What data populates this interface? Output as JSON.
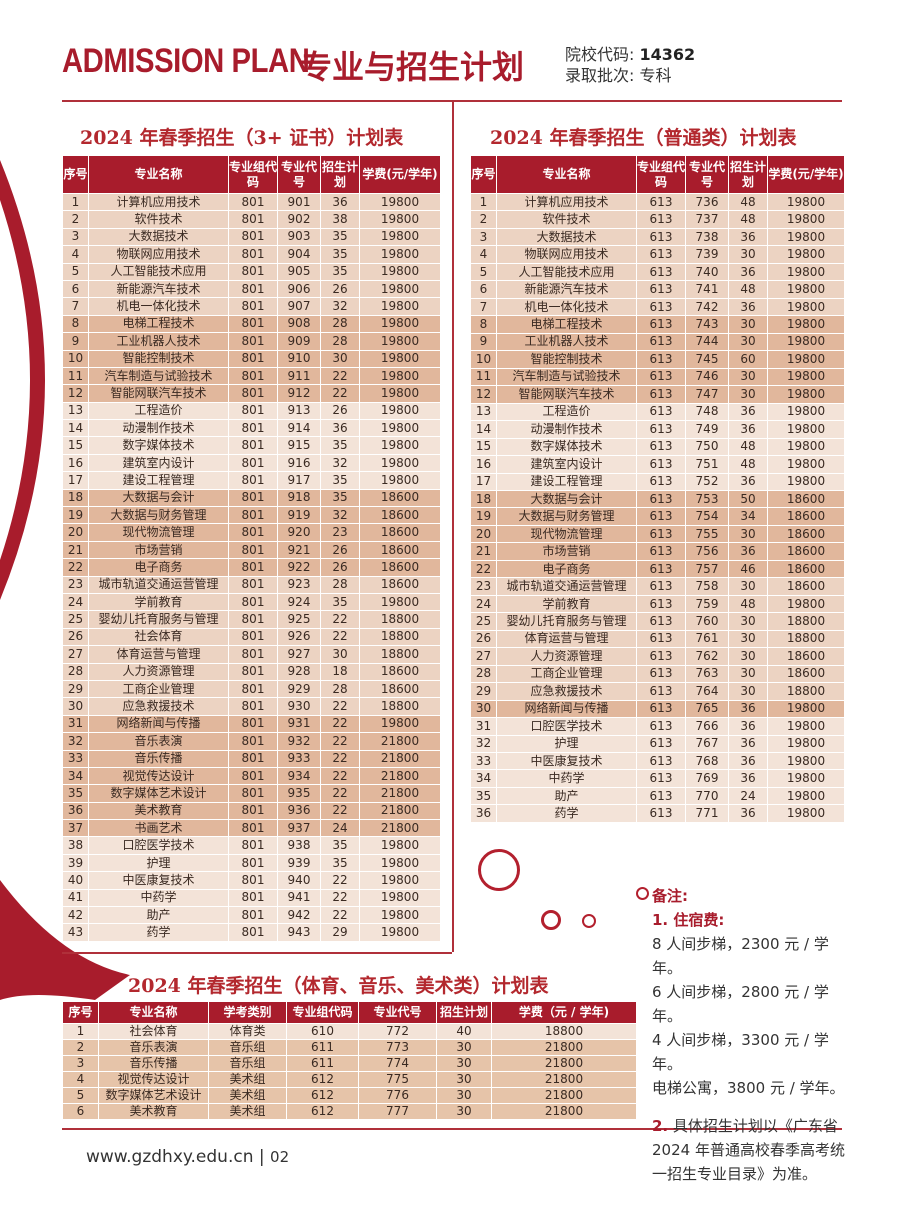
{
  "header": {
    "title_en": "ADMISSION PLAN",
    "title_cn": "专业与招生计划",
    "school_code_label": "院校代码:",
    "school_code": "14362",
    "batch_label": "录取批次:",
    "batch": "专科"
  },
  "table1": {
    "title": "2024 年春季招生（3+ 证书）计划表",
    "columns": [
      "序号",
      "专业名称",
      "专业组代码",
      "专业代号",
      "招生计划",
      "学费(元/学年)"
    ],
    "rows": [
      [
        "1",
        "计算机应用技术",
        "801",
        "901",
        "36",
        "19800"
      ],
      [
        "2",
        "软件技术",
        "801",
        "902",
        "38",
        "19800"
      ],
      [
        "3",
        "大数据技术",
        "801",
        "903",
        "35",
        "19800"
      ],
      [
        "4",
        "物联网应用技术",
        "801",
        "904",
        "35",
        "19800"
      ],
      [
        "5",
        "人工智能技术应用",
        "801",
        "905",
        "35",
        "19800"
      ],
      [
        "6",
        "新能源汽车技术",
        "801",
        "906",
        "26",
        "19800"
      ],
      [
        "7",
        "机电一体化技术",
        "801",
        "907",
        "32",
        "19800"
      ],
      [
        "8",
        "电梯工程技术",
        "801",
        "908",
        "28",
        "19800"
      ],
      [
        "9",
        "工业机器人技术",
        "801",
        "909",
        "28",
        "19800"
      ],
      [
        "10",
        "智能控制技术",
        "801",
        "910",
        "30",
        "19800"
      ],
      [
        "11",
        "汽车制造与试验技术",
        "801",
        "911",
        "22",
        "19800"
      ],
      [
        "12",
        "智能网联汽车技术",
        "801",
        "912",
        "22",
        "19800"
      ],
      [
        "13",
        "工程造价",
        "801",
        "913",
        "26",
        "19800"
      ],
      [
        "14",
        "动漫制作技术",
        "801",
        "914",
        "36",
        "19800"
      ],
      [
        "15",
        "数字媒体技术",
        "801",
        "915",
        "35",
        "19800"
      ],
      [
        "16",
        "建筑室内设计",
        "801",
        "916",
        "32",
        "19800"
      ],
      [
        "17",
        "建设工程管理",
        "801",
        "917",
        "35",
        "19800"
      ],
      [
        "18",
        "大数据与会计",
        "801",
        "918",
        "35",
        "18600"
      ],
      [
        "19",
        "大数据与财务管理",
        "801",
        "919",
        "32",
        "18600"
      ],
      [
        "20",
        "现代物流管理",
        "801",
        "920",
        "23",
        "18600"
      ],
      [
        "21",
        "市场营销",
        "801",
        "921",
        "26",
        "18600"
      ],
      [
        "22",
        "电子商务",
        "801",
        "922",
        "26",
        "18600"
      ],
      [
        "23",
        "城市轨道交通运营管理",
        "801",
        "923",
        "28",
        "18600"
      ],
      [
        "24",
        "学前教育",
        "801",
        "924",
        "35",
        "19800"
      ],
      [
        "25",
        "婴幼儿托育服务与管理",
        "801",
        "925",
        "22",
        "18800"
      ],
      [
        "26",
        "社会体育",
        "801",
        "926",
        "22",
        "18800"
      ],
      [
        "27",
        "体育运营与管理",
        "801",
        "927",
        "30",
        "18800"
      ],
      [
        "28",
        "人力资源管理",
        "801",
        "928",
        "18",
        "18600"
      ],
      [
        "29",
        "工商企业管理",
        "801",
        "929",
        "28",
        "18600"
      ],
      [
        "30",
        "应急救援技术",
        "801",
        "930",
        "22",
        "18800"
      ],
      [
        "31",
        "网络新闻与传播",
        "801",
        "931",
        "22",
        "19800"
      ],
      [
        "32",
        "音乐表演",
        "801",
        "932",
        "22",
        "21800"
      ],
      [
        "33",
        "音乐传播",
        "801",
        "933",
        "22",
        "21800"
      ],
      [
        "34",
        "视觉传达设计",
        "801",
        "934",
        "22",
        "21800"
      ],
      [
        "35",
        "数字媒体艺术设计",
        "801",
        "935",
        "22",
        "21800"
      ],
      [
        "36",
        "美术教育",
        "801",
        "936",
        "22",
        "21800"
      ],
      [
        "37",
        "书画艺术",
        "801",
        "937",
        "24",
        "21800"
      ],
      [
        "38",
        "口腔医学技术",
        "801",
        "938",
        "35",
        "19800"
      ],
      [
        "39",
        "护理",
        "801",
        "939",
        "35",
        "19800"
      ],
      [
        "40",
        "中医康复技术",
        "801",
        "940",
        "22",
        "19800"
      ],
      [
        "41",
        "中药学",
        "801",
        "941",
        "22",
        "19800"
      ],
      [
        "42",
        "助产",
        "801",
        "942",
        "22",
        "19800"
      ],
      [
        "43",
        "药学",
        "801",
        "943",
        "29",
        "19800"
      ]
    ]
  },
  "table2": {
    "title": "2024 年春季招生（普通类）计划表",
    "columns": [
      "序号",
      "专业名称",
      "专业组代码",
      "专业代号",
      "招生计划",
      "学费(元/学年)"
    ],
    "rows": [
      [
        "1",
        "计算机应用技术",
        "613",
        "736",
        "48",
        "19800"
      ],
      [
        "2",
        "软件技术",
        "613",
        "737",
        "48",
        "19800"
      ],
      [
        "3",
        "大数据技术",
        "613",
        "738",
        "36",
        "19800"
      ],
      [
        "4",
        "物联网应用技术",
        "613",
        "739",
        "30",
        "19800"
      ],
      [
        "5",
        "人工智能技术应用",
        "613",
        "740",
        "36",
        "19800"
      ],
      [
        "6",
        "新能源汽车技术",
        "613",
        "741",
        "48",
        "19800"
      ],
      [
        "7",
        "机电一体化技术",
        "613",
        "742",
        "36",
        "19800"
      ],
      [
        "8",
        "电梯工程技术",
        "613",
        "743",
        "30",
        "19800"
      ],
      [
        "9",
        "工业机器人技术",
        "613",
        "744",
        "30",
        "19800"
      ],
      [
        "10",
        "智能控制技术",
        "613",
        "745",
        "60",
        "19800"
      ],
      [
        "11",
        "汽车制造与试验技术",
        "613",
        "746",
        "30",
        "19800"
      ],
      [
        "12",
        "智能网联汽车技术",
        "613",
        "747",
        "30",
        "19800"
      ],
      [
        "13",
        "工程造价",
        "613",
        "748",
        "36",
        "19800"
      ],
      [
        "14",
        "动漫制作技术",
        "613",
        "749",
        "36",
        "19800"
      ],
      [
        "15",
        "数字媒体技术",
        "613",
        "750",
        "48",
        "19800"
      ],
      [
        "16",
        "建筑室内设计",
        "613",
        "751",
        "48",
        "19800"
      ],
      [
        "17",
        "建设工程管理",
        "613",
        "752",
        "36",
        "19800"
      ],
      [
        "18",
        "大数据与会计",
        "613",
        "753",
        "50",
        "18600"
      ],
      [
        "19",
        "大数据与财务管理",
        "613",
        "754",
        "34",
        "18600"
      ],
      [
        "20",
        "现代物流管理",
        "613",
        "755",
        "30",
        "18600"
      ],
      [
        "21",
        "市场营销",
        "613",
        "756",
        "36",
        "18600"
      ],
      [
        "22",
        "电子商务",
        "613",
        "757",
        "46",
        "18600"
      ],
      [
        "23",
        "城市轨道交通运营管理",
        "613",
        "758",
        "30",
        "18600"
      ],
      [
        "24",
        "学前教育",
        "613",
        "759",
        "48",
        "19800"
      ],
      [
        "25",
        "婴幼儿托育服务与管理",
        "613",
        "760",
        "30",
        "18800"
      ],
      [
        "26",
        "体育运营与管理",
        "613",
        "761",
        "30",
        "18800"
      ],
      [
        "27",
        "人力资源管理",
        "613",
        "762",
        "30",
        "18600"
      ],
      [
        "28",
        "工商企业管理",
        "613",
        "763",
        "30",
        "18600"
      ],
      [
        "29",
        "应急救援技术",
        "613",
        "764",
        "30",
        "18800"
      ],
      [
        "30",
        "网络新闻与传播",
        "613",
        "765",
        "36",
        "19800"
      ],
      [
        "31",
        "口腔医学技术",
        "613",
        "766",
        "36",
        "19800"
      ],
      [
        "32",
        "护理",
        "613",
        "767",
        "36",
        "19800"
      ],
      [
        "33",
        "中医康复技术",
        "613",
        "768",
        "36",
        "19800"
      ],
      [
        "34",
        "中药学",
        "613",
        "769",
        "36",
        "19800"
      ],
      [
        "35",
        "助产",
        "613",
        "770",
        "24",
        "19800"
      ],
      [
        "36",
        "药学",
        "613",
        "771",
        "36",
        "19800"
      ]
    ]
  },
  "table3": {
    "title": "2024 年春季招生（体育、音乐、美术类）计划表",
    "columns": [
      "序号",
      "专业名称",
      "学考类别",
      "专业组代码",
      "专业代号",
      "招生计划",
      "学费（元 / 学年)"
    ],
    "rows": [
      [
        "1",
        "社会体育",
        "体育类",
        "610",
        "772",
        "40",
        "18800"
      ],
      [
        "2",
        "音乐表演",
        "音乐组",
        "611",
        "773",
        "30",
        "21800"
      ],
      [
        "3",
        "音乐传播",
        "音乐组",
        "611",
        "774",
        "30",
        "21800"
      ],
      [
        "4",
        "视觉传达设计",
        "美术组",
        "612",
        "775",
        "30",
        "21800"
      ],
      [
        "5",
        "数字媒体艺术设计",
        "美术组",
        "612",
        "776",
        "30",
        "21800"
      ],
      [
        "6",
        "美术教育",
        "美术组",
        "612",
        "777",
        "30",
        "21800"
      ]
    ]
  },
  "notes": {
    "heading": "备注:",
    "item1_title": "1. 住宿费:",
    "item1_lines": [
      "8 人间步梯，2300 元 / 学年。",
      "6 人间步梯，2800 元 / 学年。",
      "4 人间步梯，3300 元 / 学年。",
      "电梯公寓，3800 元 / 学年。"
    ],
    "item2_num": "2.",
    "item2_text": "具体招生计划以《广东省 2024 年普通高校春季高考统一招生专业目录》为准。"
  },
  "footer": {
    "url": "www.gzdhxy.edu.cn",
    "page": "02"
  },
  "colors": {
    "brand_red": "#a81c2c",
    "row_light": "#f3e3d8",
    "row_mid": "#ecd3c2",
    "row_dark": "#e1b79c"
  }
}
